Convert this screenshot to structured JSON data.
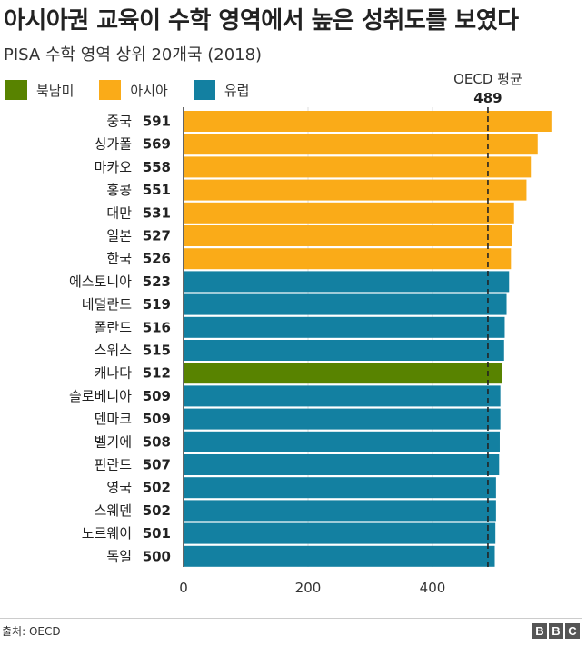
{
  "title": "아시아권 교육이 수학 영역에서 높은 성취도를 보였다",
  "subtitle": "PISA 수학 영역 상위 20개국 (2018)",
  "legend": [
    {
      "label": "북남미",
      "color": "#588300"
    },
    {
      "label": "아시아",
      "color": "#FAAB18"
    },
    {
      "label": "유럽",
      "color": "#1380A1"
    }
  ],
  "reference": {
    "label": "OECD 평균",
    "value_label": "489",
    "value": 489
  },
  "source": "출처: OECD",
  "brand": [
    "B",
    "B",
    "C"
  ],
  "chart_data": {
    "type": "bar",
    "orientation": "horizontal",
    "title": "아시아권 교육이 수학 영역에서 높은 성취도를 보였다",
    "subtitle": "PISA 수학 영역 상위 20개국 (2018)",
    "xlabel": "",
    "ylabel": "",
    "xlim": [
      0,
      600
    ],
    "x_ticks": [
      0,
      200,
      400
    ],
    "categories": [
      "중국",
      "싱가폴",
      "마카오",
      "홍콩",
      "대만",
      "일본",
      "한국",
      "에스토니아",
      "네덜란드",
      "폴란드",
      "스위스",
      "캐나다",
      "슬로베니아",
      "덴마크",
      "벨기에",
      "핀란드",
      "영국",
      "스웨덴",
      "노르웨이",
      "독일"
    ],
    "values": [
      591,
      569,
      558,
      551,
      531,
      527,
      526,
      523,
      519,
      516,
      515,
      512,
      509,
      509,
      508,
      507,
      502,
      502,
      501,
      500
    ],
    "regions": [
      "아시아",
      "아시아",
      "아시아",
      "아시아",
      "아시아",
      "아시아",
      "아시아",
      "유럽",
      "유럽",
      "유럽",
      "유럽",
      "북남미",
      "유럽",
      "유럽",
      "유럽",
      "유럽",
      "유럽",
      "유럽",
      "유럽",
      "유럽"
    ],
    "reference_line": {
      "label": "OECD 평균",
      "value": 489
    }
  }
}
